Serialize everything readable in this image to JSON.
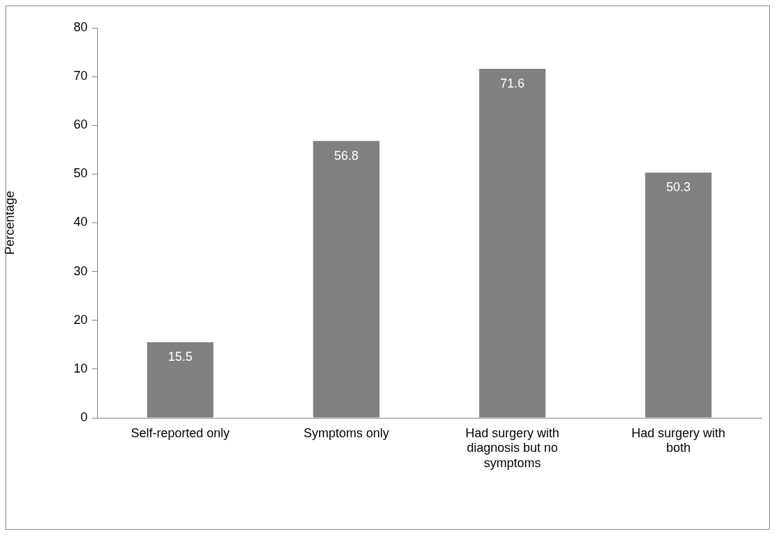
{
  "chart_data": {
    "type": "bar",
    "ylabel": "Percentage",
    "categories": [
      "Self-reported only",
      "Symptoms only",
      "Had surgery with diagnosis but no symptoms",
      "Had surgery with both"
    ],
    "values": [
      15.5,
      56.8,
      71.6,
      50.3
    ],
    "color": "#808080",
    "ylim": [
      0,
      80
    ],
    "yticks": [
      0,
      10,
      20,
      30,
      40,
      50,
      60,
      70,
      80
    ],
    "grid": false,
    "legend": false,
    "data_labels": true
  }
}
